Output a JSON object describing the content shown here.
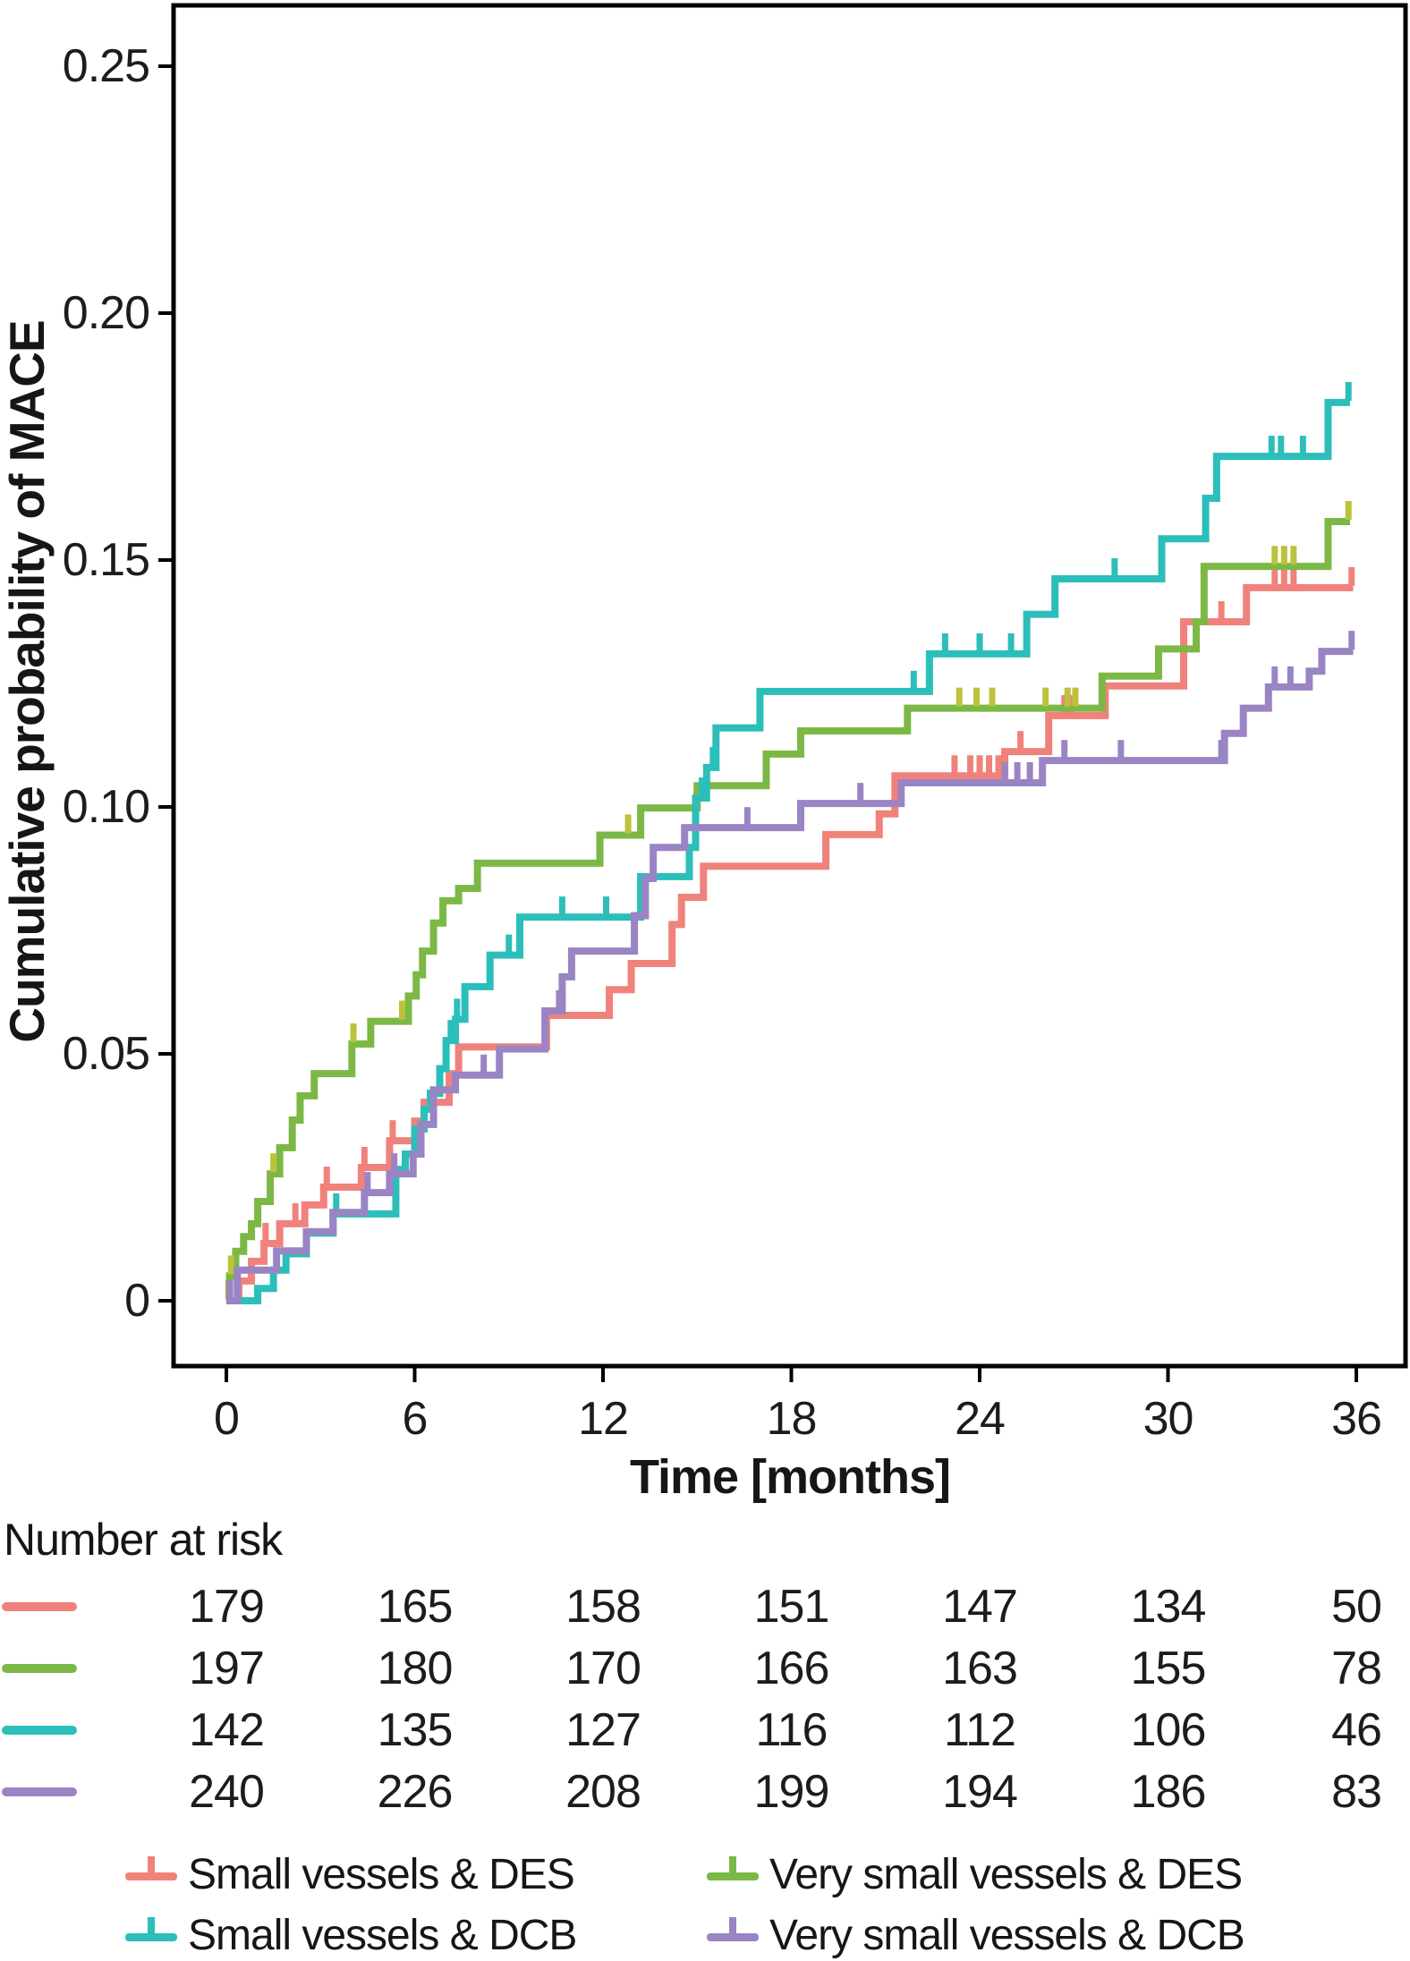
{
  "chart_data": {
    "type": "line",
    "subtype": "kaplan-meier-step",
    "title": "",
    "xlabel": "Time [months]",
    "ylabel": "Cumulative probability of MACE",
    "x_ticks": [
      {
        "v": 0,
        "label": "0"
      },
      {
        "v": 6,
        "label": "6"
      },
      {
        "v": 12,
        "label": "12"
      },
      {
        "v": 18,
        "label": "18"
      },
      {
        "v": 24,
        "label": "24"
      },
      {
        "v": 30,
        "label": "30"
      },
      {
        "v": 36,
        "label": "36"
      }
    ],
    "y_ticks": [
      {
        "v": 0,
        "label": "0"
      },
      {
        "v": 0.05,
        "label": "0.05"
      },
      {
        "v": 0.1,
        "label": "0.10"
      },
      {
        "v": 0.15,
        "label": "0.15"
      },
      {
        "v": 0.2,
        "label": "0.20"
      },
      {
        "v": 0.25,
        "label": "0.25"
      }
    ],
    "xlim": [
      0,
      36
    ],
    "ylim": [
      0,
      0.25
    ],
    "grid": false,
    "legend_position": "bottom",
    "series": [
      {
        "id": "small-des",
        "name": "Small vessels & DES",
        "color": "#F0827B",
        "points": [
          [
            0,
            0
          ],
          [
            0.4,
            0.004
          ],
          [
            0.8,
            0.008
          ],
          [
            1.2,
            0.0116
          ],
          [
            1.7,
            0.0156
          ],
          [
            2.5,
            0.0194
          ],
          [
            3.1,
            0.023
          ],
          [
            4.3,
            0.027
          ],
          [
            5.2,
            0.0324
          ],
          [
            6.0,
            0.0364
          ],
          [
            6.3,
            0.0402
          ],
          [
            7.1,
            0.046
          ],
          [
            7.4,
            0.0514
          ],
          [
            10.2,
            0.0578
          ],
          [
            12.2,
            0.063
          ],
          [
            12.9,
            0.0683
          ],
          [
            14.2,
            0.0762
          ],
          [
            14.5,
            0.0817
          ],
          [
            15.2,
            0.088
          ],
          [
            19.1,
            0.0944
          ],
          [
            20.8,
            0.0986
          ],
          [
            21.3,
            0.1063
          ],
          [
            24.8,
            0.1112
          ],
          [
            26.2,
            0.1185
          ],
          [
            28.0,
            0.1245
          ],
          [
            30.5,
            0.1375
          ],
          [
            32.5,
            0.1444
          ]
        ],
        "end": 35.9,
        "censors": [
          0.07,
          1.25,
          2.2,
          3.2,
          4.4,
          5.3,
          23.2,
          23.7,
          24.0,
          24.3,
          24.6,
          25.3,
          26.7,
          26.9,
          31.7,
          33.4,
          33.7,
          34.0,
          35.85
        ]
      },
      {
        "id": "very-small-des",
        "name": "Very small vessels & DES",
        "color": "#7CB845",
        "censor_color": "#BCC23C",
        "points": [
          [
            0,
            0
          ],
          [
            0.1,
            0.005
          ],
          [
            0.3,
            0.01
          ],
          [
            0.55,
            0.013
          ],
          [
            0.8,
            0.0156
          ],
          [
            1.0,
            0.0201
          ],
          [
            1.4,
            0.0257
          ],
          [
            1.7,
            0.031
          ],
          [
            2.1,
            0.0366
          ],
          [
            2.35,
            0.0415
          ],
          [
            2.8,
            0.046
          ],
          [
            4.0,
            0.052
          ],
          [
            4.6,
            0.0566
          ],
          [
            5.8,
            0.0617
          ],
          [
            6.05,
            0.066
          ],
          [
            6.25,
            0.0708
          ],
          [
            6.6,
            0.0765
          ],
          [
            6.9,
            0.081
          ],
          [
            7.4,
            0.0835
          ],
          [
            8.0,
            0.0886
          ],
          [
            11.9,
            0.0943
          ],
          [
            13.2,
            0.0998
          ],
          [
            15.0,
            0.1043
          ],
          [
            17.2,
            0.1107
          ],
          [
            18.3,
            0.1154
          ],
          [
            21.7,
            0.12
          ],
          [
            27.9,
            0.1265
          ],
          [
            29.7,
            0.132
          ],
          [
            30.9,
            0.1375
          ],
          [
            31.15,
            0.1487
          ],
          [
            35.1,
            0.1578
          ]
        ],
        "end": 35.8,
        "censors": [
          0.15,
          1.5,
          4.05,
          5.6,
          12.8,
          23.35,
          23.9,
          24.4,
          26.1,
          26.8,
          27.05,
          33.4,
          33.7,
          34.0,
          35.75
        ]
      },
      {
        "id": "small-dcb",
        "name": "Small vessels & DCB",
        "color": "#2CBEBA",
        "points": [
          [
            0,
            0
          ],
          [
            1.0,
            0.0025
          ],
          [
            1.5,
            0.0062
          ],
          [
            1.9,
            0.0095
          ],
          [
            2.55,
            0.0137
          ],
          [
            3.4,
            0.0176
          ],
          [
            5.4,
            0.0266
          ],
          [
            5.7,
            0.0297
          ],
          [
            6.0,
            0.0348
          ],
          [
            6.3,
            0.0388
          ],
          [
            6.5,
            0.042
          ],
          [
            6.8,
            0.047
          ],
          [
            7.0,
            0.0527
          ],
          [
            7.3,
            0.057
          ],
          [
            7.6,
            0.0636
          ],
          [
            8.4,
            0.07
          ],
          [
            9.35,
            0.0777
          ],
          [
            13.2,
            0.0859
          ],
          [
            14.75,
            0.0918
          ],
          [
            14.95,
            0.1018
          ],
          [
            15.3,
            0.108
          ],
          [
            15.6,
            0.116
          ],
          [
            17.0,
            0.1234
          ],
          [
            22.4,
            0.131
          ],
          [
            25.5,
            0.139
          ],
          [
            26.4,
            0.1462
          ],
          [
            29.8,
            0.1543
          ],
          [
            31.2,
            0.1625
          ],
          [
            31.55,
            0.171
          ],
          [
            35.1,
            0.1819
          ]
        ],
        "end": 35.8,
        "censors": [
          3.5,
          7.15,
          7.35,
          9.0,
          10.7,
          12.1,
          15.15,
          15.5,
          21.9,
          22.9,
          24.0,
          25.0,
          28.3,
          33.3,
          33.6,
          34.3,
          35.75
        ]
      },
      {
        "id": "very-small-dcb",
        "name": "Very small vessels & DCB",
        "color": "#9A84C4",
        "points": [
          [
            0,
            0
          ],
          [
            0.35,
            0.0062
          ],
          [
            1.6,
            0.0101
          ],
          [
            2.55,
            0.014
          ],
          [
            3.4,
            0.0179
          ],
          [
            4.4,
            0.0219
          ],
          [
            5.2,
            0.0257
          ],
          [
            5.95,
            0.0297
          ],
          [
            6.2,
            0.0357
          ],
          [
            6.6,
            0.0427
          ],
          [
            7.3,
            0.0457
          ],
          [
            8.7,
            0.051
          ],
          [
            10.15,
            0.0587
          ],
          [
            10.7,
            0.0656
          ],
          [
            11.0,
            0.0708
          ],
          [
            13.0,
            0.078
          ],
          [
            13.35,
            0.0855
          ],
          [
            13.6,
            0.0918
          ],
          [
            14.6,
            0.0958
          ],
          [
            18.3,
            0.1007
          ],
          [
            21.5,
            0.1049
          ],
          [
            26.0,
            0.1094
          ],
          [
            31.8,
            0.1149
          ],
          [
            32.4,
            0.12
          ],
          [
            33.2,
            0.1243
          ],
          [
            34.5,
            0.1275
          ],
          [
            34.9,
            0.1315
          ]
        ],
        "end": 35.9,
        "censors": [
          0.12,
          4.5,
          5.35,
          8.2,
          10.6,
          16.6,
          20.2,
          24.8,
          25.2,
          25.6,
          26.7,
          28.5,
          31.7,
          33.4,
          33.9,
          35.85
        ]
      }
    ],
    "number_at_risk": {
      "label": "Number at risk",
      "times": [
        0,
        6,
        12,
        18,
        24,
        30,
        36
      ],
      "rows": [
        {
          "series": "small-des",
          "color": "#F0827B",
          "values": [
            179,
            165,
            158,
            151,
            147,
            134,
            50
          ]
        },
        {
          "series": "very-small-des",
          "color": "#7CB845",
          "values": [
            197,
            180,
            170,
            166,
            163,
            155,
            78
          ]
        },
        {
          "series": "small-dcb",
          "color": "#2CBEBA",
          "values": [
            142,
            135,
            127,
            116,
            112,
            106,
            46
          ]
        },
        {
          "series": "very-small-dcb",
          "color": "#9A84C4",
          "values": [
            240,
            226,
            208,
            199,
            194,
            186,
            83
          ]
        }
      ]
    },
    "legend": [
      {
        "label": "Small vessels & DES",
        "color": "#F0827B"
      },
      {
        "label": "Very small vessels & DES",
        "color": "#7CB845"
      },
      {
        "label": "Small vessels & DCB",
        "color": "#2CBEBA"
      },
      {
        "label": "Very small vessels & DCB",
        "color": "#9A84C4"
      }
    ],
    "axis_color": "#000000"
  }
}
